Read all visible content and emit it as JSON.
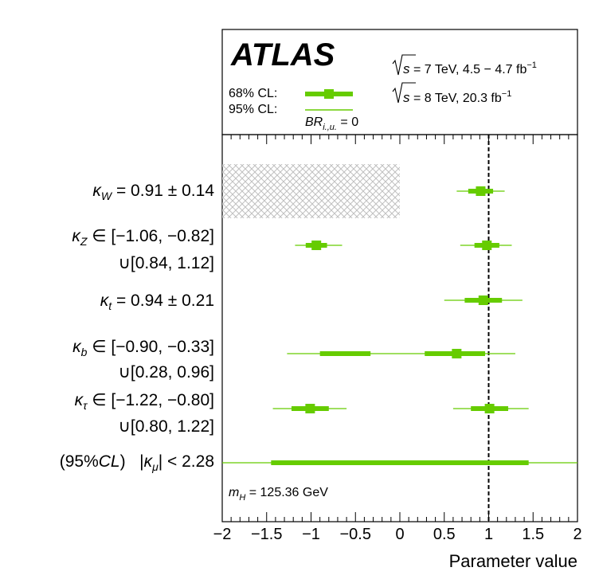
{
  "chart_data": {
    "type": "forest",
    "experiment": "ATLAS",
    "energy_labels": [
      "√s = 7 TeV, 4.5 − 4.7 fb⁻¹",
      "√s = 8 TeV, 20.3 fb⁻¹"
    ],
    "legend": {
      "cl68_label": "68% CL:",
      "cl95_label": "95% CL:",
      "br_label": "BR_i.,u. = 0"
    },
    "mass_label": "m_H = 125.36 GeV",
    "xlabel": "Parameter value",
    "xlim": [
      -2,
      2
    ],
    "xticks": [
      "−2",
      "−1.5",
      "−1",
      "−0.5",
      "0",
      "0.5",
      "1",
      "1.5",
      "2"
    ],
    "xtick_values": [
      -2,
      -1.5,
      -1,
      -0.5,
      0,
      0.5,
      1,
      1.5,
      2
    ],
    "reference_line": 1,
    "colors": {
      "band": "#66cc00",
      "hatch": "#bbbbbb"
    },
    "rows": [
      {
        "name": "kW",
        "label_lines": [
          "κ_W = 0.91 ± 0.14"
        ],
        "excluded_region": [
          -2,
          0
        ],
        "intervals": [
          {
            "center": 0.91,
            "cl68": [
              0.77,
              1.05
            ],
            "cl95": [
              0.64,
              1.18
            ]
          }
        ]
      },
      {
        "name": "kZ",
        "label_lines": [
          "κ_Z ∈ [−1.06, −0.82]",
          "∪[0.84, 1.12]"
        ],
        "intervals": [
          {
            "center": -0.94,
            "cl68": [
              -1.06,
              -0.82
            ],
            "cl95": [
              -1.18,
              -0.65
            ]
          },
          {
            "center": 0.98,
            "cl68": [
              0.84,
              1.12
            ],
            "cl95": [
              0.68,
              1.26
            ]
          }
        ]
      },
      {
        "name": "kt",
        "label_lines": [
          "κ_t = 0.94 ± 0.21"
        ],
        "intervals": [
          {
            "center": 0.94,
            "cl68": [
              0.73,
              1.15
            ],
            "cl95": [
              0.5,
              1.38
            ]
          }
        ]
      },
      {
        "name": "kb",
        "label_lines": [
          "κ_b ∈ [−0.90, −0.33]",
          "∪[0.28, 0.96]"
        ],
        "intervals": [
          {
            "center": 0.64,
            "cl68": [
              -0.9,
              -0.33
            ],
            "cl95": [
              -1.27,
              1.3
            ],
            "bridge": true
          },
          {
            "center": 0.64,
            "cl68": [
              0.28,
              0.96
            ],
            "cl95": null
          }
        ]
      },
      {
        "name": "ktau",
        "label_lines": [
          "κ_τ ∈ [−1.22, −0.80]",
          "∪[0.80, 1.22]"
        ],
        "intervals": [
          {
            "center": -1.01,
            "cl68": [
              -1.22,
              -0.8
            ],
            "cl95": [
              -1.43,
              -0.6
            ]
          },
          {
            "center": 1.01,
            "cl68": [
              0.8,
              1.22
            ],
            "cl95": [
              0.6,
              1.45
            ]
          }
        ]
      },
      {
        "name": "kmu",
        "label_lines": [
          "(95%CL)   |κ_μ| < 2.28"
        ],
        "intervals": [
          {
            "center": null,
            "cl68": [
              -1.45,
              1.45
            ],
            "cl95": [
              -2.0,
              2.0
            ]
          }
        ]
      }
    ]
  }
}
